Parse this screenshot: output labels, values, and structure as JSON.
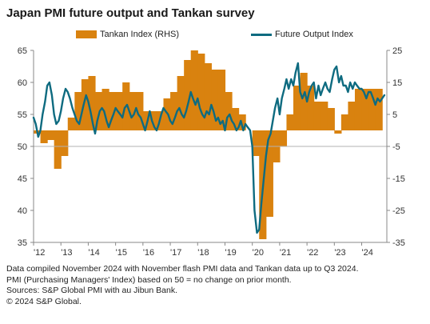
{
  "header": {
    "title": "Japan PMI future output and Tankan survey"
  },
  "chart_data": {
    "type": "bar+line",
    "title": "Japan PMI future output and Tankan survey",
    "colors": {
      "tankan": "#D9820F",
      "future_output": "#0E6B80",
      "axis": "#888888",
      "baseline": "#b3b3b3"
    },
    "left_axis": {
      "min": 35,
      "max": 65,
      "ticks": [
        35,
        40,
        45,
        50,
        55,
        60,
        65
      ]
    },
    "right_axis": {
      "min": -35,
      "max": 25,
      "ticks": [
        -35,
        -25,
        -15,
        -5,
        5,
        15,
        25
      ]
    },
    "x_axis": {
      "start": 2012.0,
      "end": 2024.92,
      "ticks": [
        {
          "pos": 2012.0,
          "label": "'12"
        },
        {
          "pos": 2013.0,
          "label": "'13"
        },
        {
          "pos": 2014.0,
          "label": "'14"
        },
        {
          "pos": 2015.0,
          "label": "'15"
        },
        {
          "pos": 2016.0,
          "label": "'16"
        },
        {
          "pos": 2017.0,
          "label": "'17"
        },
        {
          "pos": 2018.0,
          "label": "'18"
        },
        {
          "pos": 2019.0,
          "label": "'19"
        },
        {
          "pos": 2020.0,
          "label": "'20"
        },
        {
          "pos": 2021.0,
          "label": "'21"
        },
        {
          "pos": 2022.0,
          "label": "'22"
        },
        {
          "pos": 2023.0,
          "label": "'23"
        },
        {
          "pos": 2024.0,
          "label": "'24"
        }
      ]
    },
    "series": [
      {
        "name": "Tankan Index (RHS)",
        "type": "bar",
        "axis": "right",
        "points": [
          [
            2012.0,
            -1
          ],
          [
            2012.25,
            -4
          ],
          [
            2012.5,
            -3
          ],
          [
            2012.75,
            -12
          ],
          [
            2013.0,
            -8
          ],
          [
            2013.25,
            4
          ],
          [
            2013.5,
            12
          ],
          [
            2013.75,
            16
          ],
          [
            2014.0,
            17
          ],
          [
            2014.25,
            12
          ],
          [
            2014.5,
            13
          ],
          [
            2014.75,
            12
          ],
          [
            2015.0,
            12
          ],
          [
            2015.25,
            15
          ],
          [
            2015.5,
            12
          ],
          [
            2015.75,
            12
          ],
          [
            2016.0,
            6
          ],
          [
            2016.25,
            6
          ],
          [
            2016.5,
            6
          ],
          [
            2016.75,
            10
          ],
          [
            2017.0,
            12
          ],
          [
            2017.25,
            17
          ],
          [
            2017.5,
            22
          ],
          [
            2017.75,
            25
          ],
          [
            2018.0,
            24
          ],
          [
            2018.25,
            21
          ],
          [
            2018.5,
            19
          ],
          [
            2018.75,
            19
          ],
          [
            2019.0,
            12
          ],
          [
            2019.25,
            7
          ],
          [
            2019.5,
            5
          ],
          [
            2019.75,
            0
          ],
          [
            2020.0,
            -8
          ],
          [
            2020.25,
            -34
          ],
          [
            2020.5,
            -27
          ],
          [
            2020.75,
            -10
          ],
          [
            2021.0,
            -5
          ],
          [
            2021.25,
            5
          ],
          [
            2021.5,
            14
          ],
          [
            2021.75,
            18
          ],
          [
            2022.0,
            14
          ],
          [
            2022.25,
            9
          ],
          [
            2022.5,
            9
          ],
          [
            2022.75,
            7
          ],
          [
            2023.0,
            -1
          ],
          [
            2023.25,
            5
          ],
          [
            2023.5,
            9
          ],
          [
            2023.75,
            13
          ],
          [
            2024.0,
            13
          ],
          [
            2024.25,
            13
          ],
          [
            2024.5,
            13
          ]
        ]
      },
      {
        "name": "Future Output Index",
        "type": "line",
        "axis": "left",
        "points": [
          [
            2012.0,
            54.5
          ],
          [
            2012.08,
            53.5
          ],
          [
            2012.17,
            51.5
          ],
          [
            2012.25,
            52.5
          ],
          [
            2012.33,
            55.0
          ],
          [
            2012.42,
            57.0
          ],
          [
            2012.5,
            59.5
          ],
          [
            2012.58,
            60.0
          ],
          [
            2012.67,
            58.0
          ],
          [
            2012.75,
            55.0
          ],
          [
            2012.83,
            53.5
          ],
          [
            2012.92,
            54.0
          ],
          [
            2013.0,
            55.5
          ],
          [
            2013.08,
            57.5
          ],
          [
            2013.17,
            59.0
          ],
          [
            2013.25,
            58.5
          ],
          [
            2013.33,
            57.5
          ],
          [
            2013.42,
            56.0
          ],
          [
            2013.5,
            55.0
          ],
          [
            2013.58,
            54.0
          ],
          [
            2013.67,
            53.5
          ],
          [
            2013.75,
            55.0
          ],
          [
            2013.83,
            56.5
          ],
          [
            2013.92,
            58.0
          ],
          [
            2014.0,
            57.0
          ],
          [
            2014.08,
            55.5
          ],
          [
            2014.17,
            53.5
          ],
          [
            2014.25,
            52.0
          ],
          [
            2014.33,
            54.0
          ],
          [
            2014.42,
            55.5
          ],
          [
            2014.5,
            56.0
          ],
          [
            2014.58,
            55.5
          ],
          [
            2014.67,
            54.0
          ],
          [
            2014.75,
            53.0
          ],
          [
            2014.83,
            54.0
          ],
          [
            2014.92,
            55.0
          ],
          [
            2015.0,
            56.0
          ],
          [
            2015.08,
            55.5
          ],
          [
            2015.17,
            55.0
          ],
          [
            2015.25,
            54.5
          ],
          [
            2015.33,
            56.0
          ],
          [
            2015.42,
            56.5
          ],
          [
            2015.5,
            55.5
          ],
          [
            2015.58,
            54.5
          ],
          [
            2015.67,
            55.0
          ],
          [
            2015.75,
            56.0
          ],
          [
            2015.83,
            55.0
          ],
          [
            2015.92,
            54.5
          ],
          [
            2016.0,
            53.5
          ],
          [
            2016.08,
            52.5
          ],
          [
            2016.17,
            54.0
          ],
          [
            2016.25,
            55.5
          ],
          [
            2016.33,
            54.0
          ],
          [
            2016.42,
            53.0
          ],
          [
            2016.5,
            52.5
          ],
          [
            2016.58,
            53.5
          ],
          [
            2016.67,
            55.0
          ],
          [
            2016.75,
            56.0
          ],
          [
            2016.83,
            55.5
          ],
          [
            2016.92,
            55.0
          ],
          [
            2017.0,
            54.0
          ],
          [
            2017.08,
            53.5
          ],
          [
            2017.17,
            54.5
          ],
          [
            2017.25,
            55.5
          ],
          [
            2017.33,
            56.0
          ],
          [
            2017.42,
            55.0
          ],
          [
            2017.5,
            54.5
          ],
          [
            2017.58,
            55.5
          ],
          [
            2017.67,
            57.0
          ],
          [
            2017.75,
            58.5
          ],
          [
            2017.83,
            57.5
          ],
          [
            2017.92,
            56.5
          ],
          [
            2018.0,
            57.5
          ],
          [
            2018.08,
            56.0
          ],
          [
            2018.17,
            55.0
          ],
          [
            2018.25,
            54.5
          ],
          [
            2018.33,
            55.5
          ],
          [
            2018.42,
            55.0
          ],
          [
            2018.5,
            56.5
          ],
          [
            2018.58,
            55.5
          ],
          [
            2018.67,
            54.0
          ],
          [
            2018.75,
            54.5
          ],
          [
            2018.83,
            53.5
          ],
          [
            2018.92,
            54.0
          ],
          [
            2019.0,
            52.5
          ],
          [
            2019.08,
            54.5
          ],
          [
            2019.17,
            55.0
          ],
          [
            2019.25,
            54.0
          ],
          [
            2019.33,
            53.5
          ],
          [
            2019.42,
            52.5
          ],
          [
            2019.5,
            53.0
          ],
          [
            2019.58,
            54.0
          ],
          [
            2019.67,
            52.5
          ],
          [
            2019.75,
            53.5
          ],
          [
            2019.83,
            53.0
          ],
          [
            2019.92,
            52.5
          ],
          [
            2020.0,
            50.0
          ],
          [
            2020.08,
            40.0
          ],
          [
            2020.17,
            36.5
          ],
          [
            2020.25,
            37.0
          ],
          [
            2020.33,
            41.0
          ],
          [
            2020.42,
            45.0
          ],
          [
            2020.5,
            48.5
          ],
          [
            2020.58,
            51.0
          ],
          [
            2020.67,
            52.0
          ],
          [
            2020.75,
            54.0
          ],
          [
            2020.83,
            56.0
          ],
          [
            2020.92,
            57.5
          ],
          [
            2021.0,
            55.0
          ],
          [
            2021.08,
            57.5
          ],
          [
            2021.17,
            59.0
          ],
          [
            2021.25,
            60.5
          ],
          [
            2021.33,
            59.0
          ],
          [
            2021.42,
            60.5
          ],
          [
            2021.5,
            59.5
          ],
          [
            2021.58,
            61.5
          ],
          [
            2021.67,
            63.0
          ],
          [
            2021.75,
            58.5
          ],
          [
            2021.83,
            57.5
          ],
          [
            2021.92,
            58.5
          ],
          [
            2022.0,
            57.0
          ],
          [
            2022.08,
            58.5
          ],
          [
            2022.17,
            59.5
          ],
          [
            2022.25,
            60.0
          ],
          [
            2022.33,
            57.5
          ],
          [
            2022.42,
            59.5
          ],
          [
            2022.5,
            58.0
          ],
          [
            2022.58,
            59.0
          ],
          [
            2022.67,
            60.0
          ],
          [
            2022.75,
            59.0
          ],
          [
            2022.83,
            58.5
          ],
          [
            2022.92,
            60.5
          ],
          [
            2023.0,
            62.0
          ],
          [
            2023.08,
            62.5
          ],
          [
            2023.17,
            60.0
          ],
          [
            2023.25,
            61.0
          ],
          [
            2023.33,
            59.5
          ],
          [
            2023.42,
            59.5
          ],
          [
            2023.5,
            58.5
          ],
          [
            2023.58,
            60.0
          ],
          [
            2023.67,
            59.0
          ],
          [
            2023.75,
            60.0
          ],
          [
            2023.83,
            59.5
          ],
          [
            2023.92,
            59.0
          ],
          [
            2024.0,
            59.0
          ],
          [
            2024.08,
            58.5
          ],
          [
            2024.17,
            57.5
          ],
          [
            2024.25,
            58.5
          ],
          [
            2024.33,
            58.5
          ],
          [
            2024.42,
            57.5
          ],
          [
            2024.5,
            56.5
          ],
          [
            2024.58,
            57.5
          ],
          [
            2024.67,
            57.0
          ],
          [
            2024.75,
            57.5
          ],
          [
            2024.83,
            58.0
          ]
        ]
      }
    ]
  },
  "footnotes": [
    "Data compiled November 2024 with November flash PMI data and Tankan data up to Q3 2024.",
    "PMI (Purchasing Managers' Index) based on 50 = no change on prior month.",
    "Sources: S&P Global PMI with au Jibun Bank.",
    "© 2024 S&P Global."
  ]
}
